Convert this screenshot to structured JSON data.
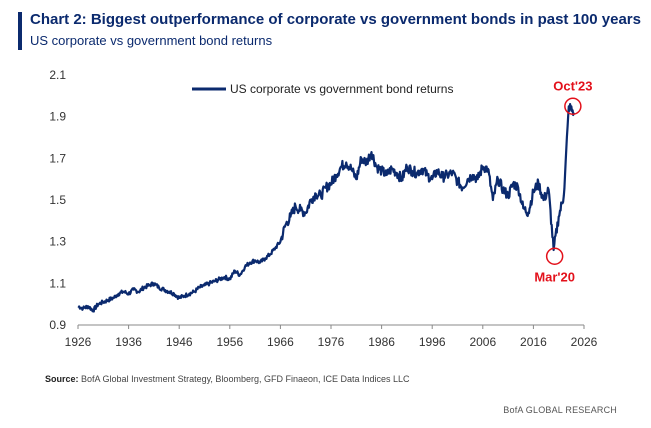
{
  "header": {
    "title": "Chart 2: Biggest outperformance of corporate vs government bonds in past 100 years",
    "subtitle": "US corporate vs government bond returns"
  },
  "footer": {
    "source_label": "Source:",
    "source_text": "BofA Global Investment Strategy, Bloomberg, GFD Finaeon, ICE Data Indices LLC",
    "brand": "BofA GLOBAL RESEARCH"
  },
  "colors": {
    "series": "#0b2a6e",
    "annotation": "#e3111b",
    "axis": "#888888"
  },
  "chart_data": {
    "type": "line",
    "title": "Chart 2: Biggest outperformance of corporate vs government bonds in past 100 years",
    "subtitle": "US corporate vs government bond returns",
    "xlabel": "",
    "ylabel": "",
    "xlim": [
      1926,
      2026
    ],
    "ylim": [
      0.9,
      2.1
    ],
    "x_ticks": [
      1926,
      1936,
      1946,
      1956,
      1966,
      1976,
      1986,
      1996,
      2006,
      2016,
      2026
    ],
    "y_ticks": [
      "0.9",
      "1.1",
      "1.3",
      "1.5",
      "1.7",
      "1.9",
      "2.1"
    ],
    "legend": {
      "position": "top-center",
      "entries": [
        "US corporate vs government bond returns"
      ]
    },
    "grid": false,
    "series": [
      {
        "name": "US corporate vs government bond returns",
        "x": [
          1926,
          1927,
          1928,
          1929,
          1930,
          1931,
          1932,
          1933,
          1934,
          1935,
          1936,
          1937,
          1938,
          1939,
          1940,
          1941,
          1942,
          1943,
          1944,
          1945,
          1946,
          1947,
          1948,
          1949,
          1950,
          1951,
          1952,
          1953,
          1954,
          1955,
          1956,
          1957,
          1958,
          1959,
          1960,
          1961,
          1962,
          1963,
          1964,
          1965,
          1966,
          1967,
          1968,
          1969,
          1970,
          1971,
          1972,
          1973,
          1974,
          1975,
          1976,
          1977,
          1978,
          1979,
          1980,
          1981,
          1982,
          1983,
          1984,
          1985,
          1986,
          1987,
          1988,
          1989,
          1990,
          1991,
          1992,
          1993,
          1994,
          1995,
          1996,
          1997,
          1998,
          1999,
          2000,
          2001,
          2002,
          2003,
          2004,
          2005,
          2006,
          2007,
          2008,
          2009,
          2010,
          2011,
          2012,
          2013,
          2014,
          2015,
          2016,
          2017,
          2018,
          2019,
          2020,
          2021,
          2022,
          2023,
          2024
        ],
        "values": [
          0.99,
          0.98,
          0.99,
          0.97,
          1.0,
          1.01,
          1.02,
          1.03,
          1.05,
          1.06,
          1.05,
          1.07,
          1.06,
          1.08,
          1.09,
          1.1,
          1.08,
          1.07,
          1.06,
          1.05,
          1.03,
          1.04,
          1.05,
          1.06,
          1.08,
          1.09,
          1.1,
          1.11,
          1.12,
          1.13,
          1.12,
          1.16,
          1.14,
          1.18,
          1.2,
          1.21,
          1.2,
          1.22,
          1.24,
          1.27,
          1.3,
          1.38,
          1.42,
          1.47,
          1.45,
          1.44,
          1.5,
          1.53,
          1.52,
          1.56,
          1.58,
          1.62,
          1.66,
          1.68,
          1.65,
          1.6,
          1.7,
          1.68,
          1.73,
          1.66,
          1.64,
          1.62,
          1.65,
          1.63,
          1.6,
          1.66,
          1.64,
          1.63,
          1.65,
          1.62,
          1.6,
          1.64,
          1.61,
          1.62,
          1.63,
          1.59,
          1.56,
          1.6,
          1.62,
          1.6,
          1.66,
          1.65,
          1.5,
          1.6,
          1.55,
          1.52,
          1.58,
          1.56,
          1.46,
          1.44,
          1.54,
          1.58,
          1.5,
          1.55,
          1.26,
          1.42,
          1.52,
          1.95,
          1.92
        ]
      }
    ],
    "annotations": [
      {
        "label": "Oct'23",
        "x": 2023.8,
        "y": 1.95,
        "position": "above"
      },
      {
        "label": "Mar'20",
        "x": 2020.2,
        "y": 1.23,
        "position": "below"
      }
    ]
  }
}
